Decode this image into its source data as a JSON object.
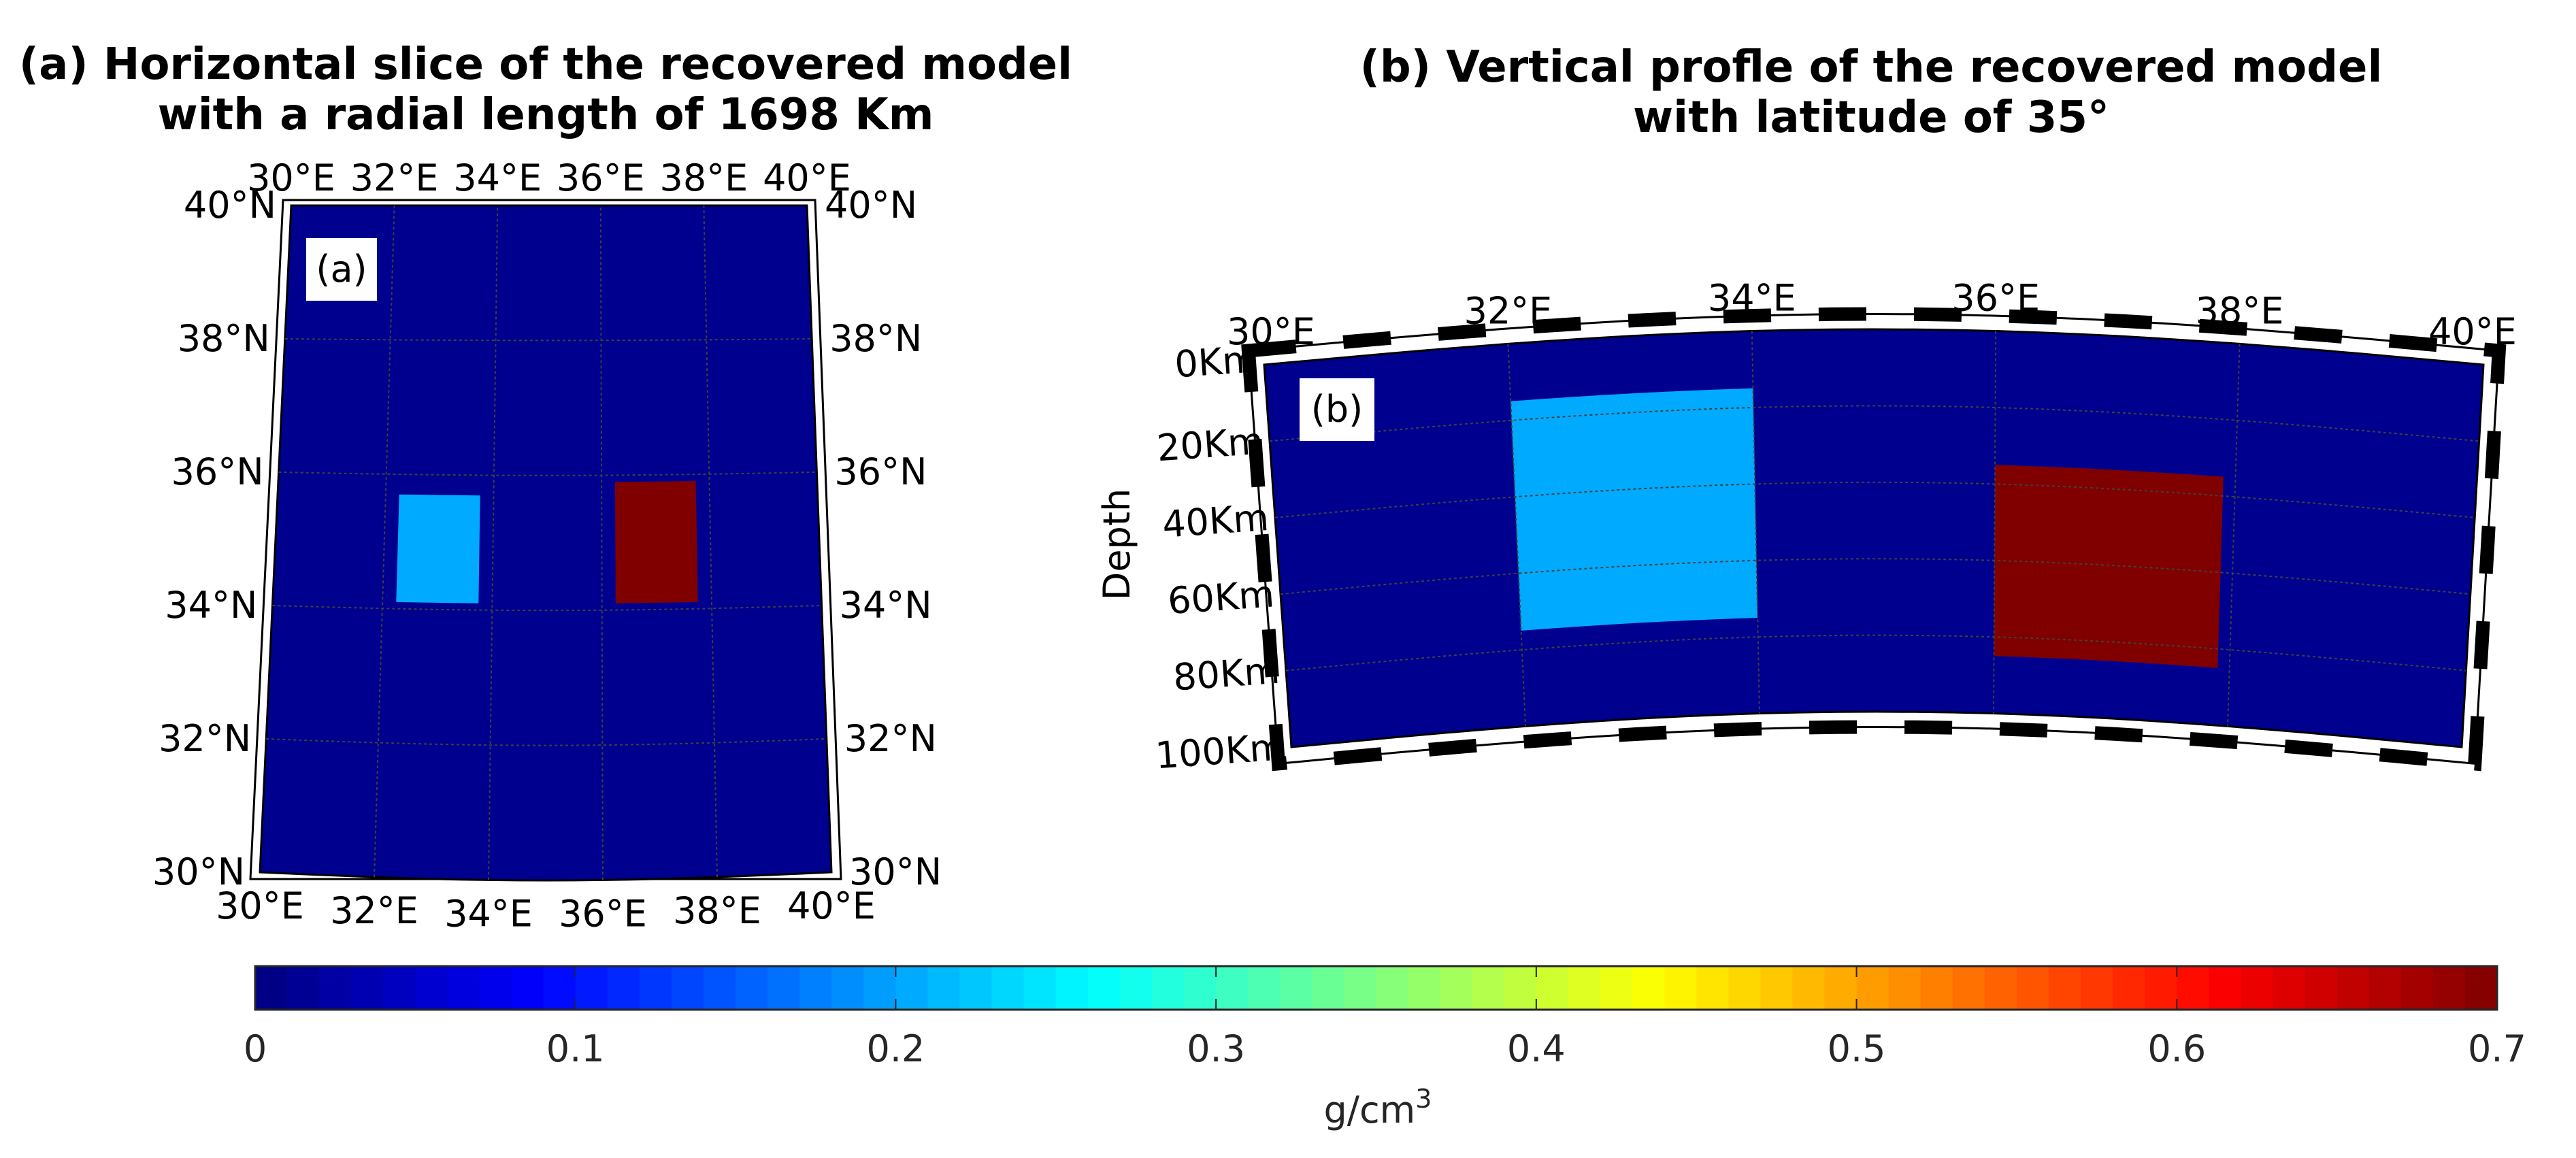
{
  "colors": {
    "background_model": "#00008f",
    "anomaly_low": "#00aaff",
    "anomaly_high": "#800000",
    "frame": "#000000",
    "grid": "#404040"
  },
  "chart_data": [
    {
      "type": "heatmap",
      "panel": "a",
      "title_lines": [
        "(a) Horizontal slice of the recovered model",
        "with a radial length of 1698 Km"
      ],
      "inset_label": "(a)",
      "projection": "map",
      "radial_length_km": 1698,
      "lon_range": [
        30,
        40
      ],
      "lat_range": [
        30,
        40
      ],
      "lon_ticks": [
        30,
        32,
        34,
        36,
        38,
        40
      ],
      "lat_ticks": [
        30,
        32,
        34,
        36,
        38,
        40
      ],
      "lon_tick_labels": [
        "30°E",
        "32°E",
        "34°E",
        "36°E",
        "38°E",
        "40°E"
      ],
      "lat_tick_labels": [
        "30°N",
        "32°N",
        "34°N",
        "36°N",
        "38°N",
        "40°N"
      ],
      "background_value": 0,
      "anomalies": [
        {
          "name": "low-density-block",
          "value": 0.24,
          "lon": [
            32.25,
            33.75
          ],
          "lat": [
            34.1,
            35.7
          ]
        },
        {
          "name": "high-density-block",
          "value": 0.7,
          "lon": [
            36.25,
            37.75
          ],
          "lat": [
            34.1,
            35.9
          ]
        }
      ]
    },
    {
      "type": "heatmap",
      "panel": "b",
      "title_lines": [
        "(b) Vertical profle of the recovered model",
        "with latitude of 35°"
      ],
      "inset_label": "(b)",
      "latitude_deg": 35,
      "ylabel": "Depth",
      "lon_range": [
        30,
        40
      ],
      "depth_range_km": [
        0,
        100
      ],
      "lon_ticks": [
        30,
        32,
        34,
        36,
        38,
        40
      ],
      "lon_tick_labels": [
        "30°E",
        "32°E",
        "34°E",
        "36°E",
        "38°E",
        "40°E"
      ],
      "depth_ticks": [
        0,
        20,
        40,
        60,
        80,
        100
      ],
      "depth_tick_labels": [
        "0Km",
        "20Km",
        "40Km",
        "60Km",
        "80Km",
        "100Km"
      ],
      "background_value": 0,
      "anomalies": [
        {
          "name": "low-density-block",
          "value": 0.24,
          "lon": [
            32.0,
            34.0
          ],
          "depth_km": [
            15,
            75
          ]
        },
        {
          "name": "high-density-block",
          "value": 0.7,
          "lon": [
            36.0,
            37.9
          ],
          "depth_km": [
            35,
            85
          ]
        }
      ]
    },
    {
      "type": "colorbar",
      "colormap": "jet",
      "range": [
        0,
        0.7
      ],
      "ticks": [
        0,
        0.1,
        0.2,
        0.3,
        0.4,
        0.5,
        0.6,
        0.7
      ],
      "tick_labels": [
        "0",
        "0.1",
        "0.2",
        "0.3",
        "0.4",
        "0.5",
        "0.6",
        "0.7"
      ],
      "units_base": "g/cm",
      "units_exp": "3",
      "segments": 70
    }
  ]
}
